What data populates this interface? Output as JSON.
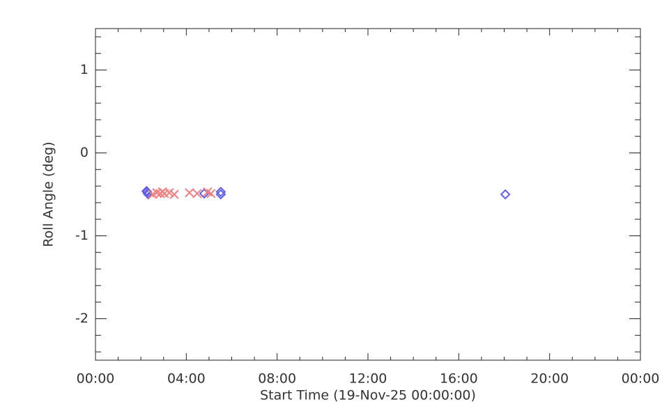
{
  "chart_data": {
    "type": "scatter",
    "xlabel": "Start Time (19-Nov-25 00:00:00)",
    "ylabel": "Roll Angle (deg)",
    "xlim": [
      0,
      24
    ],
    "ylim": [
      -2.5,
      1.5
    ],
    "xticks": [
      {
        "value": 0,
        "label": "00:00"
      },
      {
        "value": 4,
        "label": "04:00"
      },
      {
        "value": 8,
        "label": "08:00"
      },
      {
        "value": 12,
        "label": "12:00"
      },
      {
        "value": 16,
        "label": "16:00"
      },
      {
        "value": 20,
        "label": "20:00"
      },
      {
        "value": 24,
        "label": "00:00"
      }
    ],
    "yticks": [
      -2,
      -1,
      0,
      1
    ],
    "xminorticks": [
      1,
      2,
      3,
      5,
      6,
      7,
      9,
      10,
      11,
      13,
      14,
      15,
      17,
      18,
      19,
      21,
      22,
      23
    ],
    "yminorticks": [
      -2.4,
      -2.2,
      -1.8,
      -1.6,
      -1.4,
      -1.2,
      -0.8,
      -0.6,
      -0.4,
      -0.2,
      0.2,
      0.4,
      0.6,
      0.8,
      1.2,
      1.4
    ],
    "series": [
      {
        "marker": "diamond",
        "color": "#5f5fe8",
        "x": [
          2.25,
          2.27,
          2.3,
          2.33,
          4.79,
          5.52,
          5.52,
          18.05
        ],
        "values": [
          -0.46,
          -0.47,
          -0.49,
          -0.5,
          -0.49,
          -0.47,
          -0.5,
          -0.5
        ]
      },
      {
        "marker": "x",
        "color": "#f08080",
        "x": [
          2.52,
          2.7,
          2.85,
          2.95,
          3.04,
          3.25,
          3.47,
          4.14,
          4.48,
          4.94,
          5.09
        ],
        "values": [
          -0.5,
          -0.48,
          -0.49,
          -0.47,
          -0.49,
          -0.48,
          -0.5,
          -0.48,
          -0.49,
          -0.47,
          -0.49
        ]
      }
    ]
  }
}
